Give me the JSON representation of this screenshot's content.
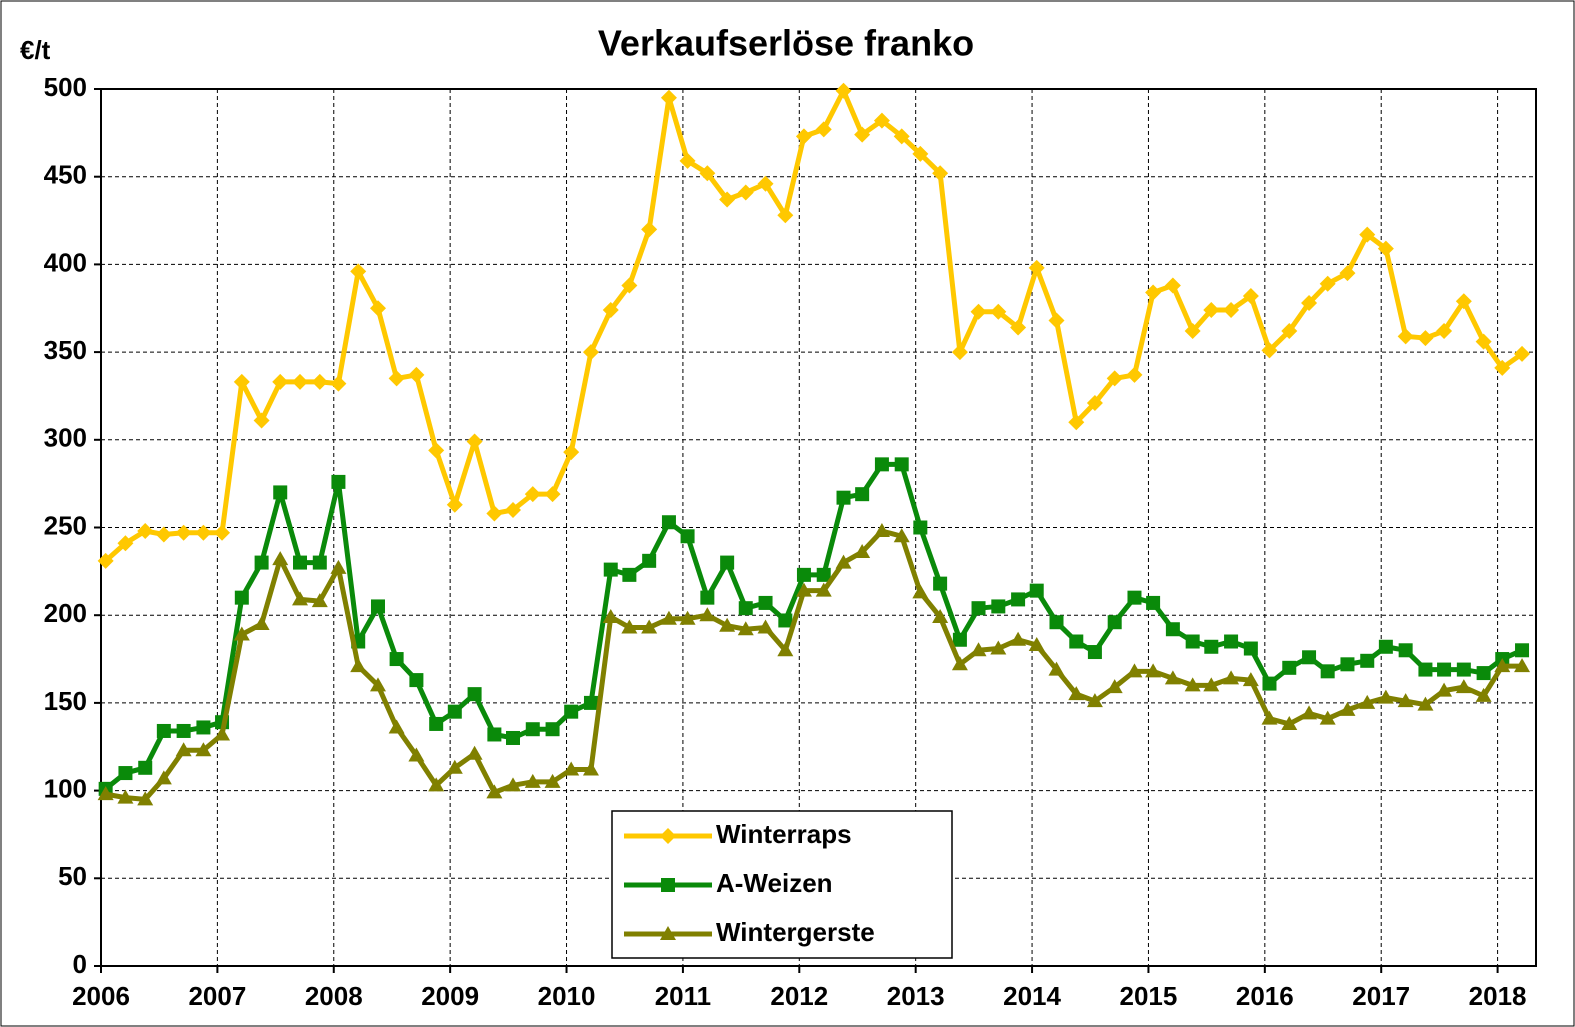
{
  "chart_data": {
    "type": "line",
    "title": "Verkaufserlöse franko",
    "y_label": "€/t",
    "x": [
      2006.04,
      2006.21,
      2006.38,
      2006.54,
      2006.71,
      2006.88,
      2007.04,
      2007.21,
      2007.38,
      2007.54,
      2007.71,
      2007.88,
      2008.04,
      2008.21,
      2008.38,
      2008.54,
      2008.71,
      2008.88,
      2009.04,
      2009.21,
      2009.38,
      2009.54,
      2009.71,
      2009.88,
      2010.04,
      2010.21,
      2010.38,
      2010.54,
      2010.71,
      2010.88,
      2011.04,
      2011.21,
      2011.38,
      2011.54,
      2011.71,
      2011.88,
      2012.04,
      2012.21,
      2012.38,
      2012.54,
      2012.71,
      2012.88,
      2013.04,
      2013.21,
      2013.38,
      2013.54,
      2013.71,
      2013.88,
      2014.04,
      2014.21,
      2014.38,
      2014.54,
      2014.71,
      2014.88,
      2015.04,
      2015.21,
      2015.38,
      2015.54,
      2015.71,
      2015.88,
      2016.04,
      2016.21,
      2016.38,
      2016.54,
      2016.71,
      2016.88,
      2017.04,
      2017.21,
      2017.38,
      2017.54,
      2017.71,
      2017.88,
      2018.04,
      2018.21
    ],
    "series": [
      {
        "name": "Winterraps",
        "color": "#ffc800",
        "marker": "diamond",
        "values": [
          231,
          241,
          248,
          246,
          247,
          247,
          247,
          333,
          311,
          333,
          333,
          333,
          332,
          396,
          375,
          335,
          337,
          294,
          263,
          299,
          258,
          260,
          269,
          269,
          293,
          350,
          374,
          388,
          420,
          495,
          459,
          452,
          437,
          441,
          446,
          428,
          473,
          477,
          499,
          474,
          482,
          473,
          463,
          452,
          350,
          373,
          373,
          364,
          398,
          368,
          310,
          321,
          335,
          337,
          384,
          388,
          362,
          374,
          374,
          382,
          351,
          362,
          378,
          389,
          395,
          417,
          409,
          359,
          358,
          362,
          379,
          356,
          341,
          349
        ]
      },
      {
        "name": "A-Weizen",
        "color": "#0a8a0a",
        "marker": "square",
        "values": [
          101,
          110,
          113,
          134,
          134,
          136,
          139,
          210,
          230,
          270,
          230,
          230,
          276,
          185,
          205,
          175,
          163,
          138,
          145,
          155,
          132,
          130,
          135,
          135,
          145,
          150,
          226,
          223,
          231,
          253,
          245,
          210,
          230,
          204,
          207,
          197,
          223,
          223,
          267,
          269,
          286,
          286,
          250,
          218,
          186,
          204,
          205,
          209,
          214,
          196,
          185,
          179,
          196,
          210,
          207,
          192,
          185,
          182,
          185,
          181,
          161,
          170,
          176,
          168,
          172,
          174,
          182,
          180,
          169,
          169,
          169,
          167,
          175,
          180
        ]
      },
      {
        "name": "Wintergerste",
        "color": "#808000",
        "marker": "triangle",
        "values": [
          98,
          96,
          95,
          107,
          123,
          123,
          132,
          189,
          195,
          232,
          209,
          208,
          227,
          171,
          160,
          136,
          120,
          103,
          113,
          121,
          99,
          103,
          105,
          105,
          112,
          112,
          199,
          193,
          193,
          198,
          198,
          200,
          194,
          192,
          193,
          180,
          214,
          214,
          230,
          236,
          248,
          245,
          213,
          199,
          172,
          180,
          181,
          186,
          183,
          169,
          155,
          151,
          159,
          168,
          168,
          164,
          160,
          160,
          164,
          163,
          141,
          138,
          144,
          141,
          146,
          150,
          153,
          151,
          149,
          157,
          159,
          154,
          171,
          171
        ]
      }
    ],
    "xlim": [
      2006,
      2018.33
    ],
    "xticks": [
      2006,
      2007,
      2008,
      2009,
      2010,
      2011,
      2012,
      2013,
      2014,
      2015,
      2016,
      2017,
      2018
    ],
    "ylim": [
      0,
      500
    ],
    "yticks": [
      0,
      50,
      100,
      150,
      200,
      250,
      300,
      350,
      400,
      450,
      500
    ],
    "grid": true
  }
}
